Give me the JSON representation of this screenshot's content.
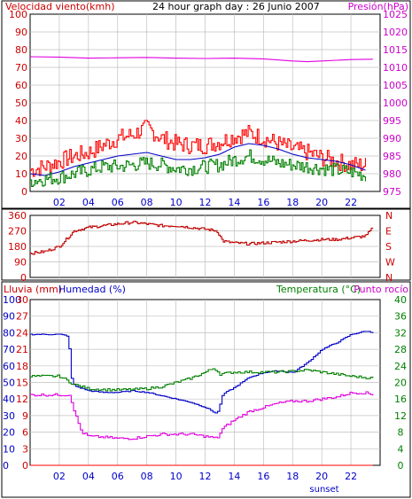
{
  "colors": {
    "red": "#ff0000",
    "magenta": "#e000e0",
    "blue": "#0000c8",
    "green": "#008000",
    "darkred": "#c00000",
    "axis": "#000000",
    "grid": "#c0c0c0"
  },
  "chart_data": [
    {
      "type": "line",
      "title": "24 hour graph day : 26 Junio 2007",
      "ylabel_left": "Velocidad viento(kmh)",
      "ylabel_right": "Presión(hPa)",
      "x_ticks": [
        "02",
        "04",
        "06",
        "08",
        "10",
        "12",
        "14",
        "16",
        "18",
        "20",
        "22"
      ],
      "x_annotation": "sunset",
      "ylim_left": [
        0,
        100
      ],
      "yticks_left": [
        "0",
        "10",
        "20",
        "30",
        "40",
        "50",
        "60",
        "70",
        "80",
        "90",
        "100"
      ],
      "ylim_right": [
        975,
        1025
      ],
      "yticks_right": [
        "975",
        "980",
        "985",
        "990",
        "995",
        "1000",
        "1005",
        "1010",
        "1015",
        "1020",
        "1025"
      ],
      "series": [
        {
          "key": "gust",
          "axis": "left",
          "color": "red",
          "style": "noisy",
          "amp": 5,
          "values": [
            [
              0,
              12
            ],
            [
              1,
              14
            ],
            [
              2,
              17
            ],
            [
              3,
              20
            ],
            [
              4,
              22
            ],
            [
              5,
              26
            ],
            [
              6,
              30
            ],
            [
              7,
              32
            ],
            [
              8,
              36
            ],
            [
              9,
              30
            ],
            [
              10,
              27
            ],
            [
              11,
              26
            ],
            [
              12,
              26
            ],
            [
              13,
              28
            ],
            [
              14,
              31
            ],
            [
              15,
              33
            ],
            [
              16,
              30
            ],
            [
              17,
              27
            ],
            [
              18,
              24
            ],
            [
              19,
              22
            ],
            [
              20,
              19
            ],
            [
              21,
              17
            ],
            [
              22,
              15
            ],
            [
              23,
              15
            ]
          ]
        },
        {
          "key": "average",
          "axis": "left",
          "color": "blue",
          "style": "smooth",
          "values": [
            [
              0,
              10
            ],
            [
              1,
              9
            ],
            [
              2,
              11
            ],
            [
              3,
              14
            ],
            [
              4,
              16
            ],
            [
              5,
              18
            ],
            [
              6,
              20
            ],
            [
              7,
              21
            ],
            [
              8,
              22
            ],
            [
              9,
              20
            ],
            [
              10,
              18
            ],
            [
              11,
              18
            ],
            [
              12,
              19
            ],
            [
              13,
              21
            ],
            [
              14,
              25
            ],
            [
              15,
              27
            ],
            [
              16,
              26
            ],
            [
              17,
              24
            ],
            [
              18,
              21
            ],
            [
              19,
              19
            ],
            [
              20,
              18
            ],
            [
              21,
              17
            ],
            [
              22,
              15
            ],
            [
              23,
              12
            ]
          ]
        },
        {
          "key": "minimum",
          "axis": "left",
          "color": "green",
          "style": "noisy",
          "amp": 4,
          "values": [
            [
              0,
              6
            ],
            [
              1,
              7
            ],
            [
              2,
              8
            ],
            [
              3,
              10
            ],
            [
              4,
              12
            ],
            [
              5,
              14
            ],
            [
              6,
              14
            ],
            [
              7,
              15
            ],
            [
              8,
              16
            ],
            [
              9,
              15
            ],
            [
              10,
              13
            ],
            [
              11,
              13
            ],
            [
              12,
              14
            ],
            [
              13,
              15
            ],
            [
              14,
              18
            ],
            [
              15,
              20
            ],
            [
              16,
              18
            ],
            [
              17,
              16
            ],
            [
              18,
              15
            ],
            [
              19,
              14
            ],
            [
              20,
              13
            ],
            [
              21,
              12
            ],
            [
              22,
              11
            ],
            [
              23,
              9
            ]
          ]
        },
        {
          "key": "pressure",
          "axis": "right",
          "color": "magenta",
          "style": "smooth",
          "values": [
            [
              0,
              1013.0
            ],
            [
              2,
              1012.9
            ],
            [
              4,
              1012.6
            ],
            [
              6,
              1012.7
            ],
            [
              8,
              1012.8
            ],
            [
              10,
              1012.6
            ],
            [
              12,
              1012.5
            ],
            [
              14,
              1012.6
            ],
            [
              16,
              1012.4
            ],
            [
              18,
              1011.8
            ],
            [
              19,
              1011.6
            ],
            [
              20,
              1011.8
            ],
            [
              22,
              1012.2
            ],
            [
              23.5,
              1012.3
            ]
          ]
        }
      ]
    },
    {
      "type": "line",
      "ylim": [
        0,
        360
      ],
      "yticks_left": [
        "0",
        "90",
        "180",
        "270",
        "360"
      ],
      "yticks_right": [
        "N",
        "W",
        "S",
        "E",
        "N"
      ],
      "x_ticks": [
        "02",
        "04",
        "06",
        "08",
        "10",
        "12",
        "14",
        "16",
        "18",
        "20",
        "22"
      ],
      "series": [
        {
          "key": "wind_direction",
          "color": "darkred",
          "style": "noisy",
          "amp": 8,
          "values": [
            [
              0,
              140
            ],
            [
              1,
              150
            ],
            [
              2,
              180
            ],
            [
              3,
              270
            ],
            [
              4,
              290
            ],
            [
              5,
              300
            ],
            [
              6,
              310
            ],
            [
              7,
              320
            ],
            [
              8,
              310
            ],
            [
              9,
              300
            ],
            [
              10,
              300
            ],
            [
              11,
              290
            ],
            [
              12,
              280
            ],
            [
              12.8,
              270
            ],
            [
              13.2,
              210
            ],
            [
              14,
              200
            ],
            [
              15,
              195
            ],
            [
              16,
              200
            ],
            [
              17,
              205
            ],
            [
              18,
              210
            ],
            [
              19,
              215
            ],
            [
              20,
              220
            ],
            [
              21,
              220
            ],
            [
              22,
              230
            ],
            [
              23,
              240
            ],
            [
              23.5,
              290
            ]
          ]
        }
      ]
    },
    {
      "type": "line",
      "ylabel_left_1": "Lluvia (mm)",
      "ylabel_left_2": "Humedad (%)",
      "ylabel_right": "Temperatura (°C)",
      "ylabel_right_2": "Punto rocío",
      "x_ticks": [
        "02",
        "04",
        "06",
        "08",
        "10",
        "12",
        "14",
        "16",
        "18",
        "20",
        "22"
      ],
      "x_annotation": "sunset",
      "ylim_humidity": [
        0,
        100
      ],
      "yticks_humidity": [
        "0",
        "10",
        "20",
        "30",
        "40",
        "50",
        "60",
        "70",
        "80",
        "90",
        "100"
      ],
      "ylim_rain": [
        0,
        30
      ],
      "yticks_rain": [
        "0",
        "3",
        "6",
        "9",
        "12",
        "15",
        "18",
        "21",
        "24",
        "27",
        "30"
      ],
      "ylim_temp": [
        0,
        40
      ],
      "yticks_temp": [
        "0",
        "4",
        "8",
        "12",
        "16",
        "20",
        "24",
        "28",
        "32",
        "36",
        "40"
      ],
      "series": [
        {
          "key": "humidity",
          "axis": "humidity",
          "color": "blue",
          "style": "steps",
          "values": [
            [
              0,
              79
            ],
            [
              1,
              79
            ],
            [
              2,
              79
            ],
            [
              2.6,
              78
            ],
            [
              2.8,
              53
            ],
            [
              3,
              48
            ],
            [
              4,
              45
            ],
            [
              5,
              44
            ],
            [
              6,
              44
            ],
            [
              7,
              45
            ],
            [
              8,
              44
            ],
            [
              9,
              42
            ],
            [
              10,
              40
            ],
            [
              11,
              38
            ],
            [
              12,
              35
            ],
            [
              12.8,
              31
            ],
            [
              13.2,
              43
            ],
            [
              14,
              47
            ],
            [
              15,
              53
            ],
            [
              16,
              56
            ],
            [
              17,
              57
            ],
            [
              18,
              56
            ],
            [
              19,
              62
            ],
            [
              20,
              70
            ],
            [
              21,
              74
            ],
            [
              22,
              79
            ],
            [
              23,
              81
            ],
            [
              23.5,
              80
            ]
          ]
        },
        {
          "key": "temperature",
          "axis": "temp",
          "color": "green",
          "style": "steps",
          "values": [
            [
              0,
              21.5
            ],
            [
              2,
              21.5
            ],
            [
              3,
              19.5
            ],
            [
              4,
              18.5
            ],
            [
              5,
              18.3
            ],
            [
              6,
              18.2
            ],
            [
              7,
              18.3
            ],
            [
              8,
              18.5
            ],
            [
              9,
              19
            ],
            [
              10,
              20
            ],
            [
              11,
              21
            ],
            [
              12,
              22.5
            ],
            [
              12.6,
              23.5
            ],
            [
              13,
              22
            ],
            [
              14,
              22.5
            ],
            [
              15,
              22.5
            ],
            [
              16,
              22.5
            ],
            [
              17,
              22.5
            ],
            [
              18,
              22.7
            ],
            [
              19,
              23
            ],
            [
              20,
              22.5
            ],
            [
              21,
              22
            ],
            [
              22,
              21.5
            ],
            [
              23,
              21.2
            ],
            [
              23.5,
              21
            ]
          ]
        },
        {
          "key": "dew_point",
          "axis": "temp",
          "color": "magenta",
          "style": "steps",
          "values": [
            [
              0,
              17
            ],
            [
              2.7,
              17
            ],
            [
              3,
              13
            ],
            [
              3.5,
              8
            ],
            [
              4,
              7
            ],
            [
              5,
              6.8
            ],
            [
              6,
              6.5
            ],
            [
              7,
              6.5
            ],
            [
              8,
              7
            ],
            [
              9,
              7.5
            ],
            [
              10,
              7.5
            ],
            [
              11,
              7.5
            ],
            [
              12,
              7
            ],
            [
              12.8,
              6.5
            ],
            [
              13.2,
              9
            ],
            [
              14,
              11
            ],
            [
              15,
              13
            ],
            [
              16,
              14
            ],
            [
              17,
              15
            ],
            [
              18,
              15.5
            ],
            [
              19,
              15.5
            ],
            [
              20,
              16
            ],
            [
              21,
              16.5
            ],
            [
              22,
              17.5
            ],
            [
              23,
              17.5
            ],
            [
              23.5,
              17
            ]
          ]
        },
        {
          "key": "rain",
          "axis": "rain",
          "color": "red",
          "style": "smooth",
          "values": [
            [
              0,
              0
            ],
            [
              23.5,
              0
            ]
          ]
        }
      ]
    }
  ]
}
